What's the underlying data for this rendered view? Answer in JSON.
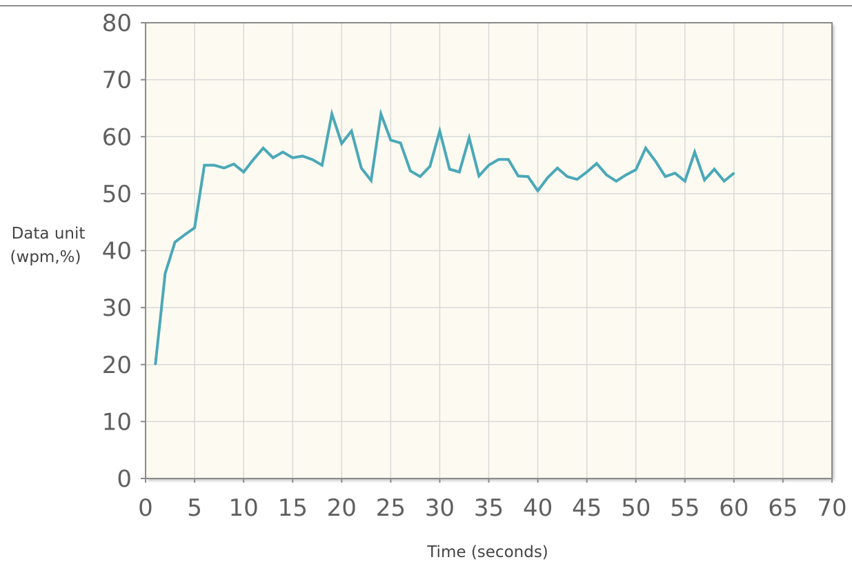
{
  "chart_data": {
    "type": "line",
    "xlabel": "Time (seconds)",
    "ylabel_lines": [
      "Data unit",
      "(wpm,%)"
    ],
    "xlim": [
      0,
      70
    ],
    "ylim": [
      0,
      80
    ],
    "x_ticks": [
      0,
      5,
      10,
      15,
      20,
      25,
      30,
      35,
      40,
      45,
      50,
      55,
      60,
      65,
      70
    ],
    "y_ticks": [
      0,
      10,
      20,
      30,
      40,
      50,
      60,
      70,
      80
    ],
    "grid": true,
    "colors": {
      "line": "#4aa8b8",
      "plot_bg": "#fdfbf1",
      "grid": "#d8d8d8",
      "frame": "#8a8a8a"
    },
    "series": [
      {
        "x": [
          1,
          2,
          3,
          4,
          5,
          6,
          7,
          8,
          9,
          10,
          11,
          12,
          13,
          14,
          15,
          16,
          17,
          18,
          19,
          20,
          21,
          22,
          23,
          24,
          25,
          26,
          27,
          28,
          29,
          30,
          31,
          32,
          33,
          34,
          35,
          36,
          37,
          38,
          39,
          40,
          41,
          42,
          43,
          44,
          45,
          46,
          47,
          48,
          49,
          50,
          51,
          52,
          53,
          54,
          55,
          56,
          57,
          58,
          59,
          60
        ],
        "values": [
          20,
          36,
          41.5,
          42.8,
          44,
          55,
          55,
          54.5,
          55.2,
          53.8,
          56,
          58,
          56.3,
          57.3,
          56.3,
          56.6,
          56,
          55,
          64,
          58.8,
          61,
          54.5,
          52.3,
          64,
          59.4,
          58.9,
          54,
          53,
          54.8,
          61,
          54.3,
          53.8,
          59.8,
          53.1,
          55,
          56,
          56,
          53.1,
          53,
          50.5,
          52.8,
          54.5,
          53,
          52.5,
          53.8,
          55.3,
          53.3,
          52.2,
          53.3,
          54.2,
          58,
          55.7,
          53,
          53.6,
          52.2,
          57.3,
          52.4,
          54.3,
          52.2,
          53.6
        ]
      }
    ]
  }
}
